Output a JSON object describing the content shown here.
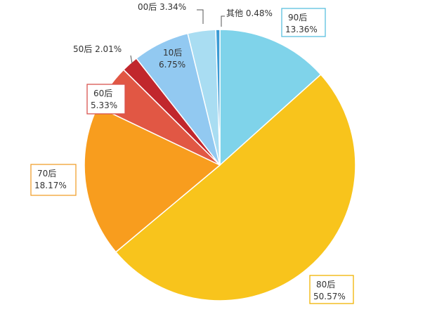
{
  "chart_data": {
    "type": "pie",
    "slices": [
      {
        "label": "90后",
        "value": 13.36,
        "value_text": "13.36%",
        "color": "#7fd3ea",
        "label_style": "boxed",
        "border": "#5bc0de"
      },
      {
        "label": "80后",
        "value": 50.57,
        "value_text": "50.57%",
        "color": "#f8c41c",
        "label_style": "boxed",
        "border": "#f0b400"
      },
      {
        "label": "70后",
        "value": 18.17,
        "value_text": "18.17%",
        "color": "#f89d1e",
        "label_style": "boxed",
        "border": "#f0a030"
      },
      {
        "label": "60后",
        "value": 5.33,
        "value_text": "5.33%",
        "color": "#e15744",
        "label_style": "boxed",
        "border": "#d9534f"
      },
      {
        "label": "50后",
        "value": 2.01,
        "value_text": "2.01%",
        "color": "#c1272d",
        "label_style": "inline"
      },
      {
        "label": "10后",
        "value": 6.75,
        "value_text": "6.75%",
        "color": "#92c9f1",
        "label_style": "plain"
      },
      {
        "label": "00后",
        "value": 3.34,
        "value_text": "3.34%",
        "color": "#a9ddf2",
        "label_style": "inline"
      },
      {
        "label": "其他",
        "value": 0.48,
        "value_text": "0.48%",
        "color": "#3a9bd5",
        "label_style": "inline"
      }
    ]
  }
}
